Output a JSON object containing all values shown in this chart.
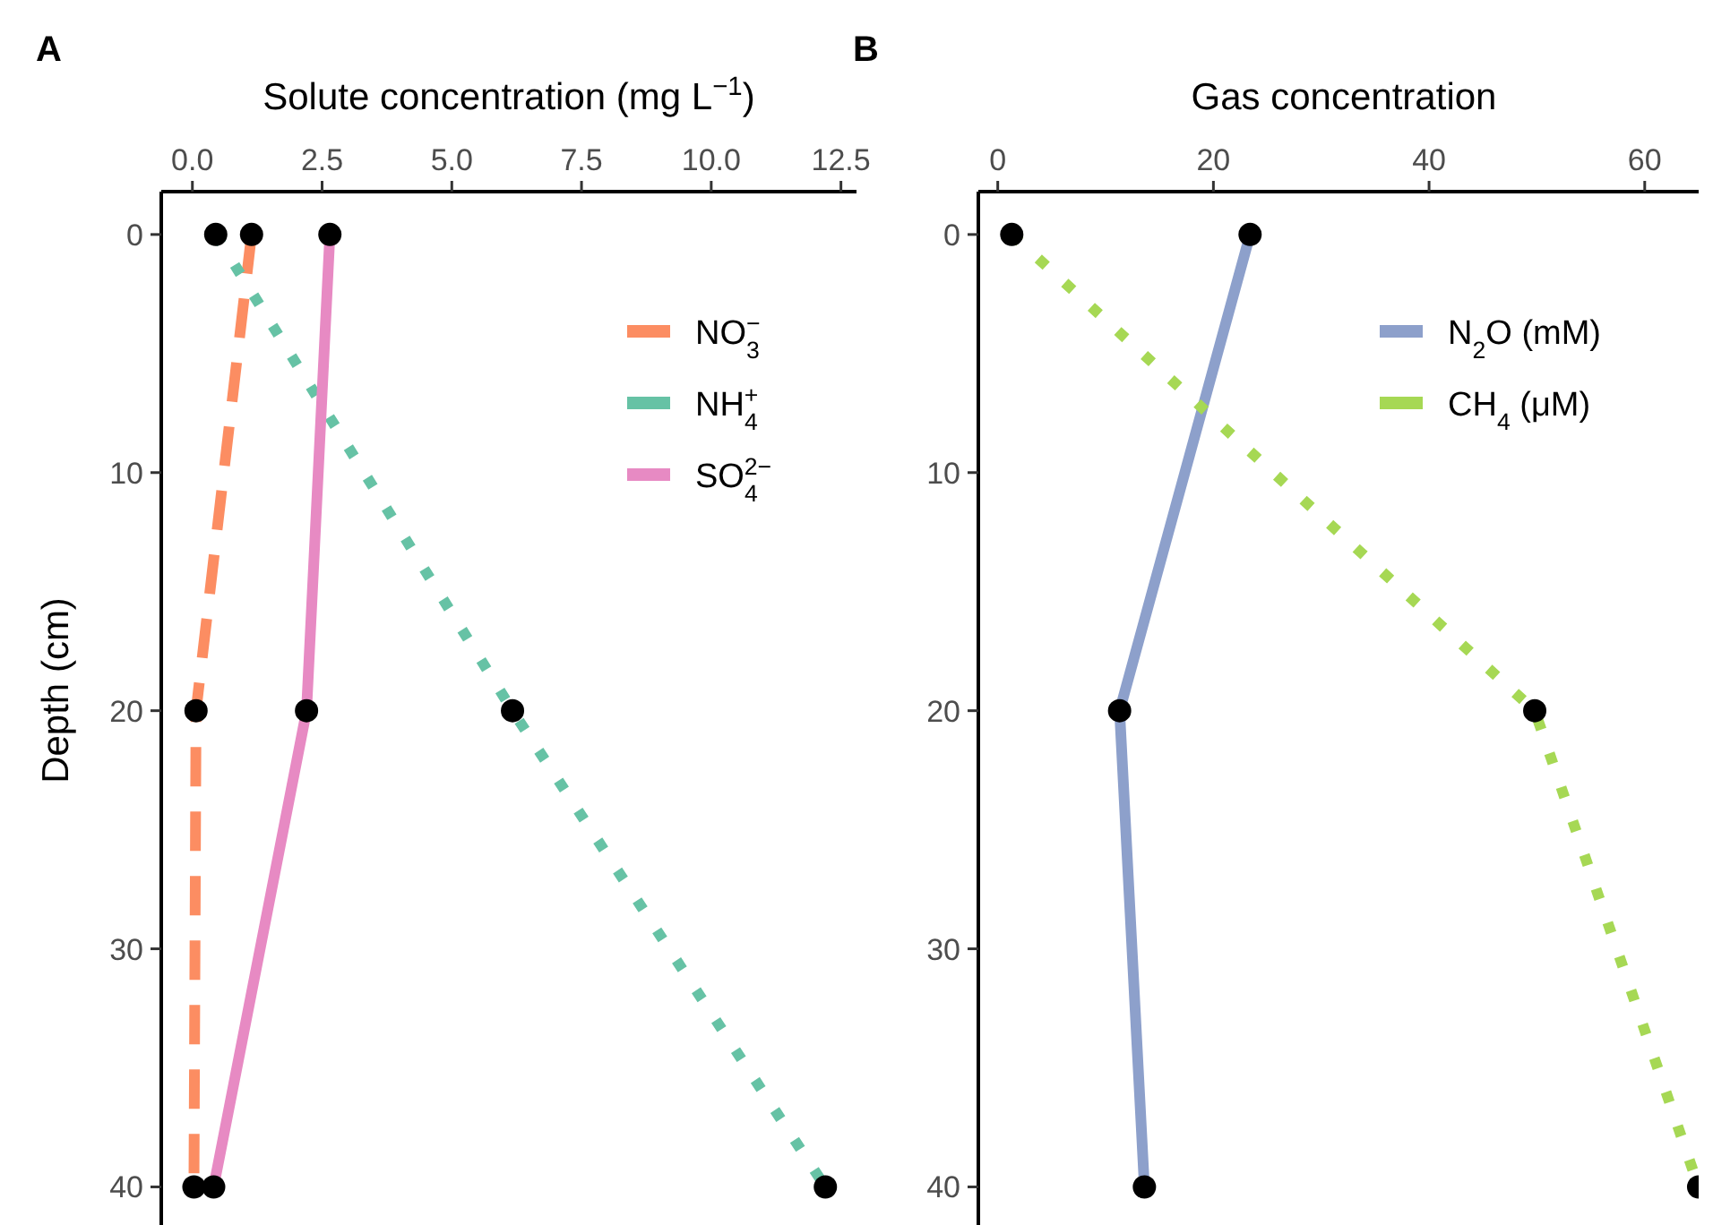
{
  "chart_data": [
    {
      "type": "line",
      "title": "A",
      "xlabel": "Solute concentration (mg L$^{−1}$)",
      "ylabel": "Depth (cm)",
      "xlim": [
        -0.6,
        12.8
      ],
      "xticks": [
        {
          "value": 0,
          "label": "0.0"
        },
        2.5,
        {
          "value": 5,
          "label": "5.0"
        },
        7.5,
        {
          "value": 10,
          "label": "10.0"
        },
        12.5
      ],
      "ylim": [
        41.6,
        -1.8
      ],
      "yticks": [
        0,
        10,
        20,
        30,
        40
      ],
      "grid": false,
      "legend": "top right",
      "marker": "circle",
      "series": [
        {
          "name": "NO$_{3}$$^{−}$",
          "color": "#fc8d62",
          "line_style": "dashed",
          "x": [
            1.14,
            0.07,
            0.03
          ],
          "values": [
            0,
            20,
            40
          ]
        },
        {
          "name": "NH$_{4}$$^{+}$",
          "color": "#66c2a5",
          "line_style": "dotted",
          "x": [
            0.45,
            6.17,
            12.2
          ],
          "values": [
            0,
            20,
            40
          ]
        },
        {
          "name": "SO$_{4}$$^{2−}$",
          "color": "#e78ac3",
          "line_style": "solid",
          "x": [
            2.65,
            2.2,
            0.41
          ],
          "values": [
            0,
            20,
            40
          ]
        }
      ]
    },
    {
      "type": "line",
      "title": "B",
      "xlabel": "Gas concentration",
      "xlim": [
        -1.8,
        66
      ],
      "xticks": [
        0,
        20,
        40,
        60
      ],
      "ylim": [
        41.6,
        -1.8
      ],
      "yticks": [
        0,
        10,
        20,
        30,
        40
      ],
      "grid": false,
      "legend": "top right",
      "marker": "circle",
      "series": [
        {
          "name": "N$_{2}$O (mM)",
          "color": "#8da0cb",
          "line_style": "solid",
          "x": [
            23.4,
            11.3,
            13.6
          ],
          "values": [
            0,
            20,
            40
          ]
        },
        {
          "name": "CH$_{4}$ (μM)",
          "color": "#a6d854",
          "line_style": "dotted",
          "x": [
            1.3,
            49.8,
            65
          ],
          "values": [
            0,
            20,
            40
          ]
        }
      ]
    }
  ]
}
